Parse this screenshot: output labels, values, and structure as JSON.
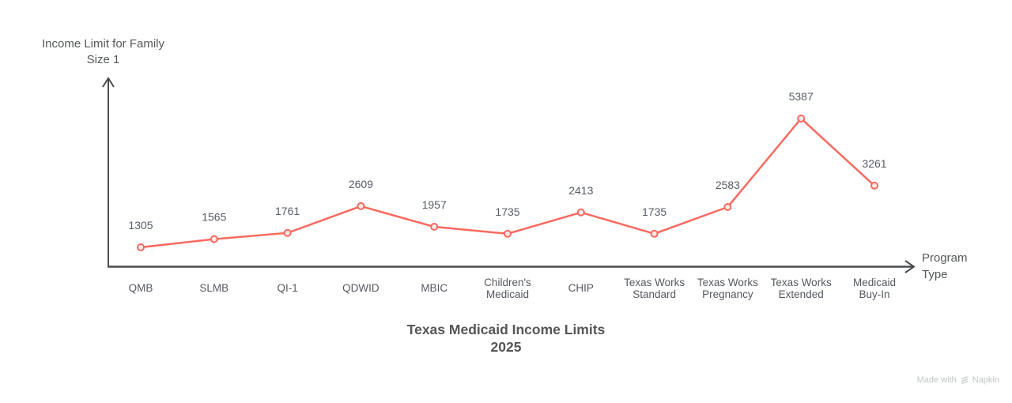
{
  "chart_data": {
    "type": "line",
    "title": "Texas Medicaid Income Limits",
    "subtitle": "2025",
    "xlabel": "Program\nType",
    "ylabel": "Income Limit for Family\nSize 1",
    "categories": [
      "QMB",
      "SLMB",
      "QI-1",
      "QDWID",
      "MBIC",
      "Children's\nMedicaid",
      "CHIP",
      "Texas Works\nStandard",
      "Texas Works\nPregnancy",
      "Texas Works\nExtended",
      "Medicaid\nBuy-In"
    ],
    "values": [
      1305,
      1565,
      1761,
      2609,
      1957,
      1735,
      2413,
      1735,
      2583,
      5387,
      3261
    ],
    "grid": false,
    "legend_position": "none",
    "colors": {
      "line": "#f9695f",
      "marker_fill": "#fdeae7",
      "value_label": "#565b64",
      "tick_label": "#55585f",
      "axis": "#4a4b4d"
    }
  },
  "watermark": {
    "prefix": "Made with",
    "brand": "Napkin"
  }
}
